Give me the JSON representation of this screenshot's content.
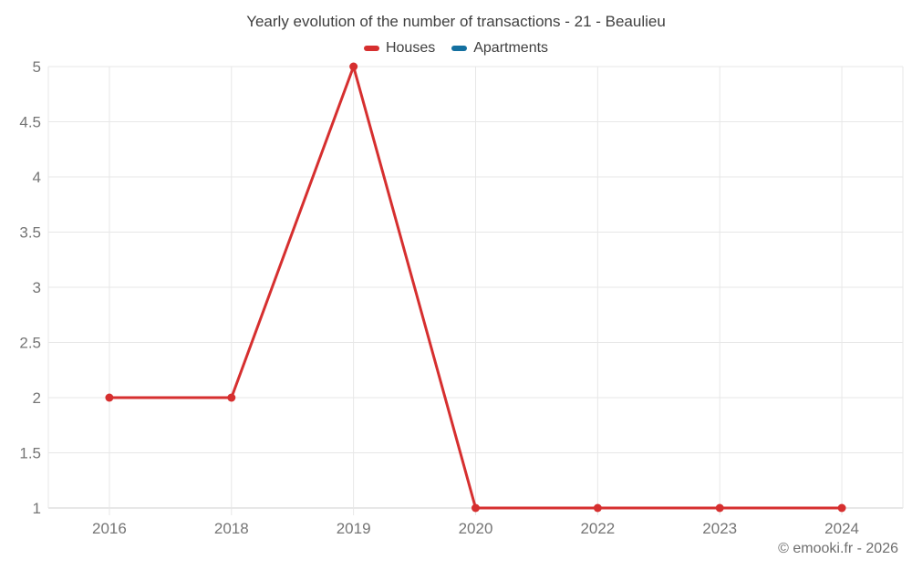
{
  "chart": {
    "title": "Yearly evolution of the number of transactions - 21 - Beaulieu",
    "legend": [
      {
        "label": "Houses",
        "color": "#d62f2f"
      },
      {
        "label": "Apartments",
        "color": "#1470a0"
      }
    ]
  },
  "footer": {
    "copyright": "© emooki.fr - 2026"
  },
  "colors": {
    "houses": "#d62f2f",
    "apartments": "#1470a0",
    "gridline": "#e7e7e7",
    "axis_line": "#cfcfcf",
    "tick_text": "#757575",
    "title_text": "#3f3f3f",
    "footer_text": "#6e6e6e"
  },
  "chart_data": {
    "type": "line",
    "title": "Yearly evolution of the number of transactions - 21 - Beaulieu",
    "categories": [
      "2016",
      "2018",
      "2019",
      "2020",
      "2022",
      "2023",
      "2024"
    ],
    "series": [
      {
        "name": "Houses",
        "color": "#d62f2f",
        "values": [
          2,
          2,
          5,
          1,
          1,
          1,
          1
        ]
      },
      {
        "name": "Apartments",
        "color": "#1470a0",
        "values": []
      }
    ],
    "xlabel": "",
    "ylabel": "",
    "ylim": [
      1,
      5
    ],
    "yticks": [
      1,
      1.5,
      2,
      2.5,
      3,
      3.5,
      4,
      4.5,
      5
    ],
    "grid": true,
    "legend_position": "top"
  }
}
